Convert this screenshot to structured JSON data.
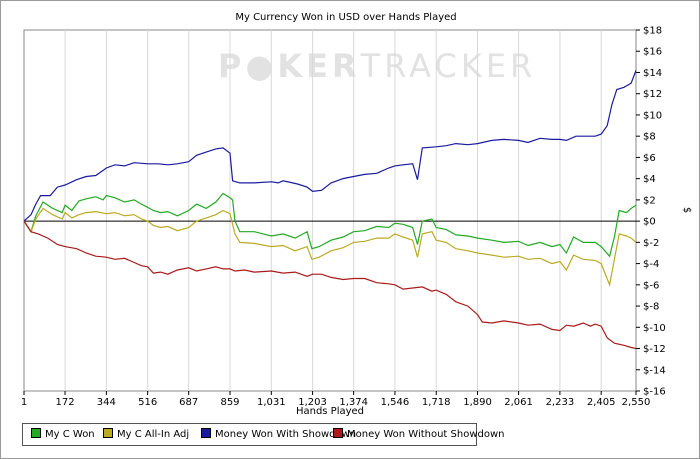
{
  "chart_data": {
    "type": "line",
    "title": "My Currency Won in USD over Hands Played",
    "xlabel": "Hands Played",
    "ylabel": "$",
    "watermark": {
      "left": "P",
      "mid": "KER",
      "right": "TRACKER"
    },
    "xlim": [
      1,
      2550
    ],
    "ylim": [
      -16,
      18
    ],
    "x_ticks": [
      1,
      172,
      344,
      516,
      687,
      859,
      1031,
      1203,
      1374,
      1546,
      1718,
      1890,
      2061,
      2233,
      2405,
      2550
    ],
    "x_tick_labels": [
      "1",
      "172",
      "344",
      "516",
      "687",
      "859",
      "1,031",
      "1,203",
      "1,374",
      "1,546",
      "1,718",
      "1,890",
      "2,061",
      "2,233",
      "2,405",
      "2,550"
    ],
    "y_ticks": [
      18,
      16,
      14,
      12,
      10,
      8,
      6,
      4,
      2,
      0,
      -2,
      -4,
      -6,
      -8,
      -10,
      -12,
      -14,
      -16
    ],
    "y_tick_labels": [
      "$18",
      "$16",
      "$14",
      "$12",
      "$10",
      "$8",
      "$6",
      "$4",
      "$2",
      "$0",
      "$-2",
      "$-4",
      "$-6",
      "$-8",
      "$-10",
      "$-12",
      "$-14",
      "$-16"
    ],
    "grid": "vertical",
    "legend_position": "bottom-left",
    "series": [
      {
        "name": "My C Won",
        "color": "#22aa22",
        "points": [
          [
            1,
            0
          ],
          [
            30,
            -1.0
          ],
          [
            50,
            0.5
          ],
          [
            80,
            1.8
          ],
          [
            120,
            1.2
          ],
          [
            160,
            0.8
          ],
          [
            172,
            1.5
          ],
          [
            200,
            1.0
          ],
          [
            230,
            1.9
          ],
          [
            260,
            2.1
          ],
          [
            300,
            2.3
          ],
          [
            330,
            2.0
          ],
          [
            344,
            2.4
          ],
          [
            380,
            2.2
          ],
          [
            420,
            1.8
          ],
          [
            460,
            2.0
          ],
          [
            490,
            1.6
          ],
          [
            516,
            1.3
          ],
          [
            540,
            1.0
          ],
          [
            570,
            0.8
          ],
          [
            600,
            0.9
          ],
          [
            640,
            0.5
          ],
          [
            687,
            1.0
          ],
          [
            720,
            1.6
          ],
          [
            760,
            1.2
          ],
          [
            800,
            1.8
          ],
          [
            830,
            2.6
          ],
          [
            859,
            2.2
          ],
          [
            870,
            2.0
          ],
          [
            880,
            0
          ],
          [
            900,
            -1.0
          ],
          [
            960,
            -1.0
          ],
          [
            1031,
            -1.4
          ],
          [
            1080,
            -1.2
          ],
          [
            1130,
            -1.6
          ],
          [
            1180,
            -1.0
          ],
          [
            1200,
            -2.6
          ],
          [
            1230,
            -2.4
          ],
          [
            1280,
            -1.8
          ],
          [
            1330,
            -1.5
          ],
          [
            1374,
            -1.0
          ],
          [
            1420,
            -0.9
          ],
          [
            1470,
            -0.5
          ],
          [
            1520,
            -0.6
          ],
          [
            1546,
            -0.2
          ],
          [
            1580,
            -0.3
          ],
          [
            1620,
            -0.6
          ],
          [
            1640,
            -2.2
          ],
          [
            1660,
            0
          ],
          [
            1700,
            0.2
          ],
          [
            1718,
            -0.6
          ],
          [
            1760,
            -0.8
          ],
          [
            1800,
            -1.3
          ],
          [
            1850,
            -1.4
          ],
          [
            1890,
            -1.6
          ],
          [
            1950,
            -1.8
          ],
          [
            2000,
            -2.0
          ],
          [
            2061,
            -1.9
          ],
          [
            2100,
            -2.3
          ],
          [
            2150,
            -2.0
          ],
          [
            2200,
            -2.4
          ],
          [
            2233,
            -2.2
          ],
          [
            2260,
            -3.0
          ],
          [
            2290,
            -1.5
          ],
          [
            2330,
            -2.0
          ],
          [
            2380,
            -2.0
          ],
          [
            2405,
            -2.4
          ],
          [
            2440,
            -3.3
          ],
          [
            2460,
            -1.5
          ],
          [
            2480,
            1.0
          ],
          [
            2510,
            0.8
          ],
          [
            2530,
            1.2
          ],
          [
            2550,
            1.5
          ]
        ]
      },
      {
        "name": "My C All-In Adj",
        "color": "#bbaa22",
        "points": [
          [
            1,
            0
          ],
          [
            30,
            -1.0
          ],
          [
            50,
            0.2
          ],
          [
            80,
            1.2
          ],
          [
            120,
            0.6
          ],
          [
            160,
            0.2
          ],
          [
            172,
            0.8
          ],
          [
            200,
            0.3
          ],
          [
            230,
            0.6
          ],
          [
            260,
            0.8
          ],
          [
            300,
            0.9
          ],
          [
            344,
            0.7
          ],
          [
            380,
            0.8
          ],
          [
            420,
            0.5
          ],
          [
            460,
            0.6
          ],
          [
            490,
            0.2
          ],
          [
            516,
            0
          ],
          [
            540,
            -0.4
          ],
          [
            570,
            -0.6
          ],
          [
            600,
            -0.5
          ],
          [
            640,
            -0.9
          ],
          [
            687,
            -0.6
          ],
          [
            720,
            0
          ],
          [
            760,
            0.3
          ],
          [
            800,
            0.6
          ],
          [
            830,
            1.0
          ],
          [
            859,
            0.7
          ],
          [
            880,
            -1.2
          ],
          [
            900,
            -2.0
          ],
          [
            960,
            -2.1
          ],
          [
            1031,
            -2.4
          ],
          [
            1080,
            -2.3
          ],
          [
            1130,
            -2.8
          ],
          [
            1180,
            -2.4
          ],
          [
            1200,
            -3.6
          ],
          [
            1230,
            -3.4
          ],
          [
            1280,
            -2.8
          ],
          [
            1330,
            -2.5
          ],
          [
            1374,
            -2.0
          ],
          [
            1420,
            -1.9
          ],
          [
            1470,
            -1.6
          ],
          [
            1520,
            -1.6
          ],
          [
            1546,
            -1.2
          ],
          [
            1580,
            -1.5
          ],
          [
            1620,
            -1.8
          ],
          [
            1640,
            -3.4
          ],
          [
            1660,
            -1.2
          ],
          [
            1700,
            -1.0
          ],
          [
            1718,
            -1.8
          ],
          [
            1760,
            -2.0
          ],
          [
            1800,
            -2.6
          ],
          [
            1850,
            -2.8
          ],
          [
            1890,
            -3.0
          ],
          [
            1950,
            -3.2
          ],
          [
            2000,
            -3.4
          ],
          [
            2061,
            -3.3
          ],
          [
            2100,
            -3.6
          ],
          [
            2150,
            -3.5
          ],
          [
            2200,
            -4.0
          ],
          [
            2233,
            -3.8
          ],
          [
            2260,
            -4.6
          ],
          [
            2290,
            -3.2
          ],
          [
            2330,
            -3.6
          ],
          [
            2380,
            -3.7
          ],
          [
            2405,
            -4.0
          ],
          [
            2440,
            -6.0
          ],
          [
            2460,
            -3.6
          ],
          [
            2480,
            -1.2
          ],
          [
            2510,
            -1.4
          ],
          [
            2530,
            -1.6
          ],
          [
            2550,
            -2.0
          ]
        ]
      },
      {
        "name": "Money Won With Showdown",
        "color": "#1a1aa0",
        "points": [
          [
            1,
            0
          ],
          [
            30,
            0.6
          ],
          [
            50,
            1.6
          ],
          [
            70,
            2.4
          ],
          [
            110,
            2.4
          ],
          [
            140,
            3.2
          ],
          [
            172,
            3.4
          ],
          [
            220,
            3.9
          ],
          [
            260,
            4.2
          ],
          [
            300,
            4.3
          ],
          [
            344,
            5.0
          ],
          [
            380,
            5.3
          ],
          [
            420,
            5.2
          ],
          [
            460,
            5.5
          ],
          [
            516,
            5.4
          ],
          [
            560,
            5.4
          ],
          [
            600,
            5.3
          ],
          [
            640,
            5.4
          ],
          [
            687,
            5.6
          ],
          [
            720,
            6.2
          ],
          [
            760,
            6.5
          ],
          [
            800,
            6.8
          ],
          [
            830,
            6.9
          ],
          [
            859,
            6.4
          ],
          [
            870,
            3.8
          ],
          [
            900,
            3.6
          ],
          [
            960,
            3.6
          ],
          [
            1031,
            3.7
          ],
          [
            1060,
            3.6
          ],
          [
            1080,
            3.8
          ],
          [
            1140,
            3.5
          ],
          [
            1180,
            3.2
          ],
          [
            1203,
            2.8
          ],
          [
            1240,
            2.9
          ],
          [
            1280,
            3.6
          ],
          [
            1330,
            4.0
          ],
          [
            1374,
            4.2
          ],
          [
            1420,
            4.4
          ],
          [
            1470,
            4.5
          ],
          [
            1520,
            5.0
          ],
          [
            1546,
            5.2
          ],
          [
            1580,
            5.3
          ],
          [
            1620,
            5.4
          ],
          [
            1640,
            3.9
          ],
          [
            1660,
            6.9
          ],
          [
            1718,
            7.0
          ],
          [
            1760,
            7.1
          ],
          [
            1800,
            7.3
          ],
          [
            1850,
            7.2
          ],
          [
            1890,
            7.3
          ],
          [
            1950,
            7.6
          ],
          [
            2000,
            7.7
          ],
          [
            2061,
            7.6
          ],
          [
            2100,
            7.4
          ],
          [
            2150,
            7.8
          ],
          [
            2200,
            7.7
          ],
          [
            2233,
            7.7
          ],
          [
            2260,
            7.6
          ],
          [
            2300,
            8.0
          ],
          [
            2380,
            8.0
          ],
          [
            2405,
            8.2
          ],
          [
            2430,
            9.0
          ],
          [
            2450,
            11.0
          ],
          [
            2470,
            12.4
          ],
          [
            2500,
            12.6
          ],
          [
            2530,
            13.0
          ],
          [
            2550,
            14.2
          ]
        ]
      },
      {
        "name": "Money Won Without Showdown",
        "color": "#aa1a1a",
        "points": [
          [
            1,
            0
          ],
          [
            30,
            -1.0
          ],
          [
            60,
            -1.2
          ],
          [
            100,
            -1.6
          ],
          [
            140,
            -2.2
          ],
          [
            172,
            -2.4
          ],
          [
            220,
            -2.6
          ],
          [
            260,
            -3.0
          ],
          [
            300,
            -3.3
          ],
          [
            344,
            -3.4
          ],
          [
            380,
            -3.6
          ],
          [
            420,
            -3.5
          ],
          [
            460,
            -3.9
          ],
          [
            490,
            -4.2
          ],
          [
            516,
            -4.3
          ],
          [
            540,
            -4.9
          ],
          [
            570,
            -4.8
          ],
          [
            600,
            -5.0
          ],
          [
            640,
            -4.6
          ],
          [
            687,
            -4.4
          ],
          [
            720,
            -4.7
          ],
          [
            760,
            -4.5
          ],
          [
            800,
            -4.3
          ],
          [
            830,
            -4.5
          ],
          [
            859,
            -4.5
          ],
          [
            880,
            -4.7
          ],
          [
            920,
            -4.6
          ],
          [
            960,
            -4.8
          ],
          [
            1031,
            -4.7
          ],
          [
            1080,
            -4.9
          ],
          [
            1130,
            -4.8
          ],
          [
            1180,
            -5.2
          ],
          [
            1203,
            -5.0
          ],
          [
            1240,
            -5.0
          ],
          [
            1280,
            -5.3
          ],
          [
            1330,
            -5.5
          ],
          [
            1374,
            -5.4
          ],
          [
            1420,
            -5.4
          ],
          [
            1470,
            -5.8
          ],
          [
            1520,
            -5.9
          ],
          [
            1546,
            -6.0
          ],
          [
            1580,
            -6.4
          ],
          [
            1620,
            -6.3
          ],
          [
            1660,
            -6.2
          ],
          [
            1700,
            -6.6
          ],
          [
            1718,
            -6.5
          ],
          [
            1760,
            -6.9
          ],
          [
            1800,
            -7.6
          ],
          [
            1850,
            -8.0
          ],
          [
            1890,
            -8.8
          ],
          [
            1910,
            -9.5
          ],
          [
            1950,
            -9.6
          ],
          [
            2000,
            -9.4
          ],
          [
            2061,
            -9.6
          ],
          [
            2100,
            -9.8
          ],
          [
            2150,
            -9.7
          ],
          [
            2200,
            -10.2
          ],
          [
            2233,
            -10.3
          ],
          [
            2260,
            -9.8
          ],
          [
            2290,
            -9.9
          ],
          [
            2330,
            -9.6
          ],
          [
            2360,
            -9.9
          ],
          [
            2380,
            -9.7
          ],
          [
            2405,
            -9.9
          ],
          [
            2430,
            -11.0
          ],
          [
            2460,
            -11.5
          ],
          [
            2500,
            -11.7
          ],
          [
            2530,
            -11.9
          ],
          [
            2550,
            -12.0
          ]
        ]
      }
    ]
  }
}
